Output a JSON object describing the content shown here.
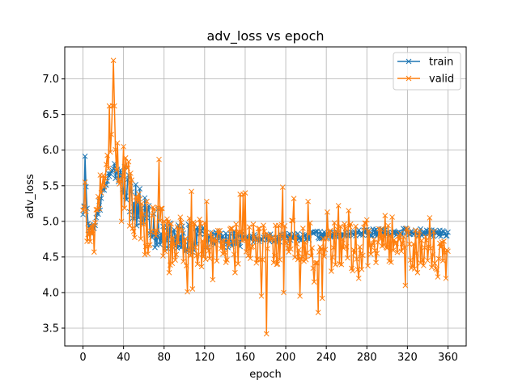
{
  "chart_data": {
    "type": "line",
    "title": "adv_loss vs epoch",
    "xlabel": "epoch",
    "ylabel": "adv_loss",
    "xlim": [
      -18,
      378
    ],
    "ylim": [
      3.25,
      7.45
    ],
    "xticks": [
      0,
      40,
      80,
      120,
      160,
      200,
      240,
      280,
      320,
      360
    ],
    "yticks": [
      3.5,
      4.0,
      4.5,
      5.0,
      5.5,
      6.0,
      6.5,
      7.0
    ],
    "grid": true,
    "legend_position": "top-right",
    "marker": "x",
    "series": [
      {
        "name": "train",
        "color": "#1f77b4",
        "anchors": [
          [
            0,
            5.05
          ],
          [
            1,
            5.3
          ],
          [
            2,
            6.02
          ],
          [
            3,
            5.4
          ],
          [
            5,
            4.9
          ],
          [
            8,
            4.85
          ],
          [
            12,
            5.0
          ],
          [
            16,
            5.2
          ],
          [
            20,
            5.4
          ],
          [
            24,
            5.6
          ],
          [
            28,
            5.75
          ],
          [
            32,
            5.7
          ],
          [
            36,
            5.62
          ],
          [
            40,
            5.55
          ],
          [
            45,
            5.45
          ],
          [
            50,
            5.35
          ],
          [
            55,
            5.2
          ],
          [
            60,
            5.05
          ],
          [
            65,
            4.95
          ],
          [
            70,
            4.88
          ],
          [
            80,
            4.8
          ],
          [
            90,
            4.77
          ],
          [
            100,
            4.75
          ],
          [
            120,
            4.74
          ],
          [
            140,
            4.74
          ],
          [
            160,
            4.75
          ],
          [
            180,
            4.76
          ],
          [
            200,
            4.77
          ],
          [
            220,
            4.79
          ],
          [
            240,
            4.81
          ],
          [
            260,
            4.82
          ],
          [
            280,
            4.84
          ],
          [
            300,
            4.85
          ],
          [
            320,
            4.85
          ],
          [
            340,
            4.84
          ],
          [
            360,
            4.83
          ]
        ],
        "noise": [
          0.12,
          0.35,
          0.22,
          0.12,
          0.06,
          0.06,
          0.05,
          0.05,
          0.05
        ]
      },
      {
        "name": "valid",
        "color": "#ff7f0e",
        "anchors": [
          [
            0,
            5.1
          ],
          [
            2,
            5.55
          ],
          [
            5,
            4.75
          ],
          [
            8,
            4.9
          ],
          [
            12,
            5.0
          ],
          [
            16,
            5.3
          ],
          [
            20,
            5.5
          ],
          [
            25,
            5.85
          ],
          [
            28,
            6.2
          ],
          [
            30,
            7.26
          ],
          [
            32,
            5.9
          ],
          [
            36,
            5.6
          ],
          [
            40,
            5.5
          ],
          [
            45,
            5.4
          ],
          [
            50,
            5.2
          ],
          [
            55,
            5.05
          ],
          [
            60,
            4.95
          ],
          [
            70,
            4.85
          ],
          [
            80,
            4.75
          ],
          [
            100,
            4.7
          ],
          [
            120,
            4.7
          ],
          [
            140,
            4.68
          ],
          [
            160,
            4.7
          ],
          [
            180,
            4.68
          ],
          [
            200,
            4.7
          ],
          [
            220,
            4.68
          ],
          [
            240,
            4.66
          ],
          [
            260,
            4.65
          ],
          [
            280,
            4.66
          ],
          [
            300,
            4.65
          ],
          [
            320,
            4.62
          ],
          [
            340,
            4.6
          ],
          [
            360,
            4.58
          ]
        ],
        "noise": [
          0.15,
          0.45,
          0.35,
          0.3,
          0.3,
          0.35,
          0.35,
          0.3,
          0.28
        ],
        "spikes": [
          [
            1,
            5.2
          ],
          [
            2,
            5.55
          ],
          [
            4,
            4.72
          ],
          [
            11,
            4.57
          ],
          [
            17,
            5.65
          ],
          [
            26,
            6.62
          ],
          [
            30,
            7.26
          ],
          [
            31,
            6.62
          ],
          [
            34,
            6.1
          ],
          [
            40,
            6.05
          ],
          [
            38,
            5.0
          ],
          [
            75,
            5.87
          ],
          [
            85,
            4.28
          ],
          [
            103,
            4.01
          ],
          [
            107,
            5.42
          ],
          [
            108,
            4.05
          ],
          [
            122,
            5.28
          ],
          [
            128,
            4.18
          ],
          [
            137,
            4.72
          ],
          [
            150,
            4.28
          ],
          [
            155,
            5.38
          ],
          [
            158,
            5.38
          ],
          [
            160,
            5.4
          ],
          [
            163,
            4.52
          ],
          [
            165,
            4.48
          ],
          [
            176,
            3.95
          ],
          [
            181,
            3.42
          ],
          [
            188,
            4.42
          ],
          [
            197,
            5.48
          ],
          [
            198,
            4.0
          ],
          [
            208,
            5.32
          ],
          [
            214,
            3.95
          ],
          [
            222,
            5.28
          ],
          [
            228,
            4.15
          ],
          [
            232,
            3.72
          ],
          [
            236,
            3.92
          ],
          [
            241,
            5.13
          ],
          [
            245,
            4.3
          ],
          [
            252,
            5.22
          ],
          [
            262,
            5.15
          ],
          [
            272,
            4.2
          ],
          [
            280,
            5.02
          ],
          [
            298,
            5.08
          ],
          [
            305,
            5.06
          ],
          [
            314,
            4.58
          ],
          [
            318,
            4.1
          ],
          [
            330,
            4.28
          ],
          [
            336,
            4.38
          ],
          [
            342,
            5.05
          ],
          [
            350,
            4.22
          ],
          [
            356,
            4.72
          ],
          [
            360,
            4.58
          ],
          [
            358,
            4.2
          ]
        ]
      }
    ]
  }
}
